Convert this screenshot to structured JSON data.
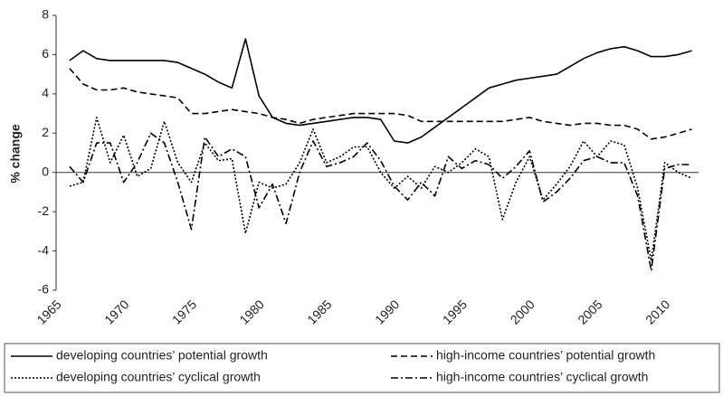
{
  "chart_data": {
    "type": "line",
    "y_label": "% change",
    "x": [
      1966,
      1967,
      1968,
      1969,
      1970,
      1971,
      1972,
      1973,
      1974,
      1975,
      1976,
      1977,
      1978,
      1979,
      1980,
      1981,
      1982,
      1983,
      1984,
      1985,
      1986,
      1987,
      1988,
      1989,
      1990,
      1991,
      1992,
      1993,
      1994,
      1995,
      1996,
      1997,
      1998,
      1999,
      2000,
      2001,
      2002,
      2003,
      2004,
      2005,
      2006,
      2007,
      2008,
      2009,
      2010,
      2011,
      2012
    ],
    "series": [
      {
        "name": "developing countries’ potential growth",
        "color": "#000000",
        "dash": "solid",
        "values": [
          5.7,
          6.2,
          5.8,
          5.7,
          5.7,
          5.7,
          5.7,
          5.7,
          5.6,
          5.3,
          5.0,
          4.6,
          4.3,
          6.8,
          3.9,
          2.8,
          2.5,
          2.4,
          2.5,
          2.6,
          2.7,
          2.8,
          2.8,
          2.7,
          1.6,
          1.5,
          1.8,
          2.3,
          2.8,
          3.3,
          3.8,
          4.3,
          4.5,
          4.7,
          4.8,
          4.9,
          5.0,
          5.4,
          5.8,
          6.1,
          6.3,
          6.4,
          6.2,
          5.9,
          5.9,
          6.0,
          6.2
        ]
      },
      {
        "name": "high-income countries’ potential growth",
        "color": "#000000",
        "dash": "dashed",
        "values": [
          5.3,
          4.5,
          4.2,
          4.2,
          4.3,
          4.1,
          4.0,
          3.9,
          3.8,
          3.0,
          3.0,
          3.1,
          3.2,
          3.1,
          3.0,
          2.8,
          2.7,
          2.5,
          2.7,
          2.8,
          2.9,
          3.0,
          3.0,
          3.0,
          3.0,
          2.9,
          2.6,
          2.6,
          2.6,
          2.6,
          2.6,
          2.6,
          2.6,
          2.7,
          2.8,
          2.6,
          2.5,
          2.4,
          2.5,
          2.5,
          2.4,
          2.4,
          2.2,
          1.7,
          1.8,
          2.0,
          2.2
        ]
      },
      {
        "name": "developing countries’ cyclical growth",
        "color": "#000000",
        "dash": "dotted",
        "values": [
          -0.7,
          -0.5,
          2.8,
          0.5,
          1.9,
          -0.2,
          0.2,
          2.6,
          0.5,
          -0.5,
          1.5,
          0.6,
          0.7,
          -3.1,
          -0.5,
          -0.8,
          -0.6,
          0.5,
          2.2,
          0.5,
          0.8,
          1.3,
          1.3,
          0.0,
          -0.8,
          -0.2,
          -0.8,
          0.3,
          0.0,
          0.5,
          1.2,
          0.8,
          -2.4,
          -0.5,
          0.8,
          -1.4,
          -0.6,
          0.3,
          1.6,
          0.8,
          1.6,
          1.4,
          -0.8,
          -4.5,
          0.5,
          0.0,
          -0.3
        ]
      },
      {
        "name": "high-income countries’ cyclical growth",
        "color": "#000000",
        "dash": "dashdot",
        "values": [
          0.3,
          -0.5,
          1.5,
          1.5,
          -0.5,
          0.5,
          2.0,
          1.5,
          -0.5,
          -2.9,
          1.8,
          0.8,
          1.2,
          0.8,
          -1.8,
          -0.6,
          -2.6,
          0.0,
          1.6,
          0.3,
          0.5,
          0.8,
          1.5,
          0.6,
          -0.7,
          -1.4,
          -0.5,
          -1.2,
          0.8,
          0.2,
          0.6,
          0.4,
          -0.3,
          0.3,
          1.1,
          -1.5,
          -1.0,
          -0.3,
          0.6,
          0.8,
          0.5,
          0.5,
          -1.2,
          -5.0,
          0.2,
          0.4,
          0.4
        ]
      }
    ],
    "xlim": [
      1965,
      2012.5
    ],
    "xticks": [
      1965,
      1970,
      1975,
      1980,
      1985,
      1990,
      1995,
      2000,
      2005,
      2010
    ],
    "ylim": [
      -6,
      8
    ],
    "yticks": [
      -6,
      -4,
      -2,
      0,
      2,
      4,
      6,
      8
    ]
  }
}
